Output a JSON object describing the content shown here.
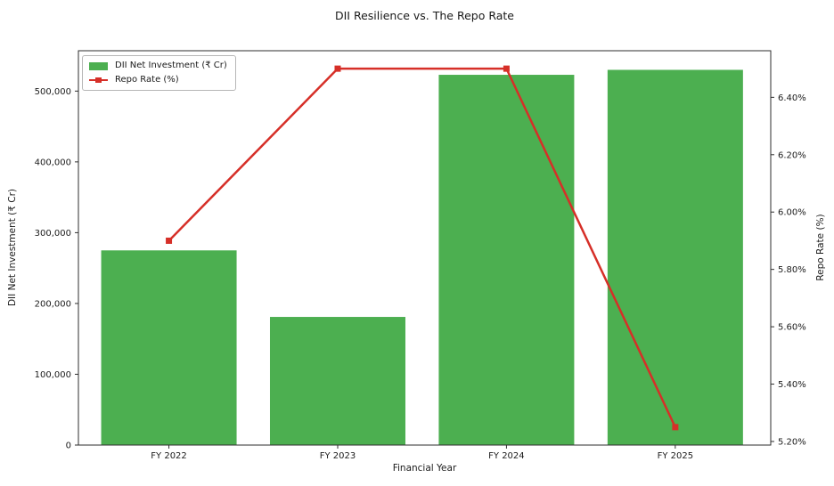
{
  "title": "DII Resilience vs. The Repo Rate",
  "chart_data": {
    "type": "bar",
    "subtype": "combo-bar-line-dual-axis",
    "title": "DII Resilience vs. The Repo Rate",
    "categories": [
      "FY 2022",
      "FY 2023",
      "FY 2024",
      "FY 2025"
    ],
    "series": [
      {
        "name": "DII Net Investment (₹ Cr)",
        "type": "bar",
        "axis": "left",
        "color": "#4caf50",
        "values": [
          275000,
          181000,
          523000,
          530000
        ]
      },
      {
        "name": "Repo Rate (%)",
        "type": "line",
        "axis": "right",
        "color": "#d62f28",
        "marker": "square",
        "values": [
          5.9,
          6.5,
          6.5,
          5.25
        ]
      }
    ],
    "xlabel": "Financial Year",
    "left_axis": {
      "label": "DII Net Investment (₹ Cr)",
      "ticks": [
        0,
        100000,
        200000,
        300000,
        400000,
        500000
      ],
      "tick_labels": [
        "0",
        "100,000",
        "200,000",
        "300,000",
        "400,000",
        "500,000"
      ],
      "ylim": [
        0,
        557000
      ]
    },
    "right_axis": {
      "label": "Repo Rate (%)",
      "ticks": [
        5.2,
        5.4,
        5.6,
        5.8,
        6.0,
        6.2,
        6.4
      ],
      "tick_labels": [
        "5.20%",
        "5.40%",
        "5.60%",
        "5.80%",
        "6.00%",
        "6.20%",
        "6.40%"
      ],
      "ylim": [
        5.1875,
        6.5625
      ]
    },
    "legend": {
      "position": "upper-left",
      "entries": [
        "DII Net Investment (₹ Cr)",
        "Repo Rate (%)"
      ]
    },
    "grid": false,
    "text_color": "#1a1a1a",
    "spine_color": "#2e2e2e"
  }
}
